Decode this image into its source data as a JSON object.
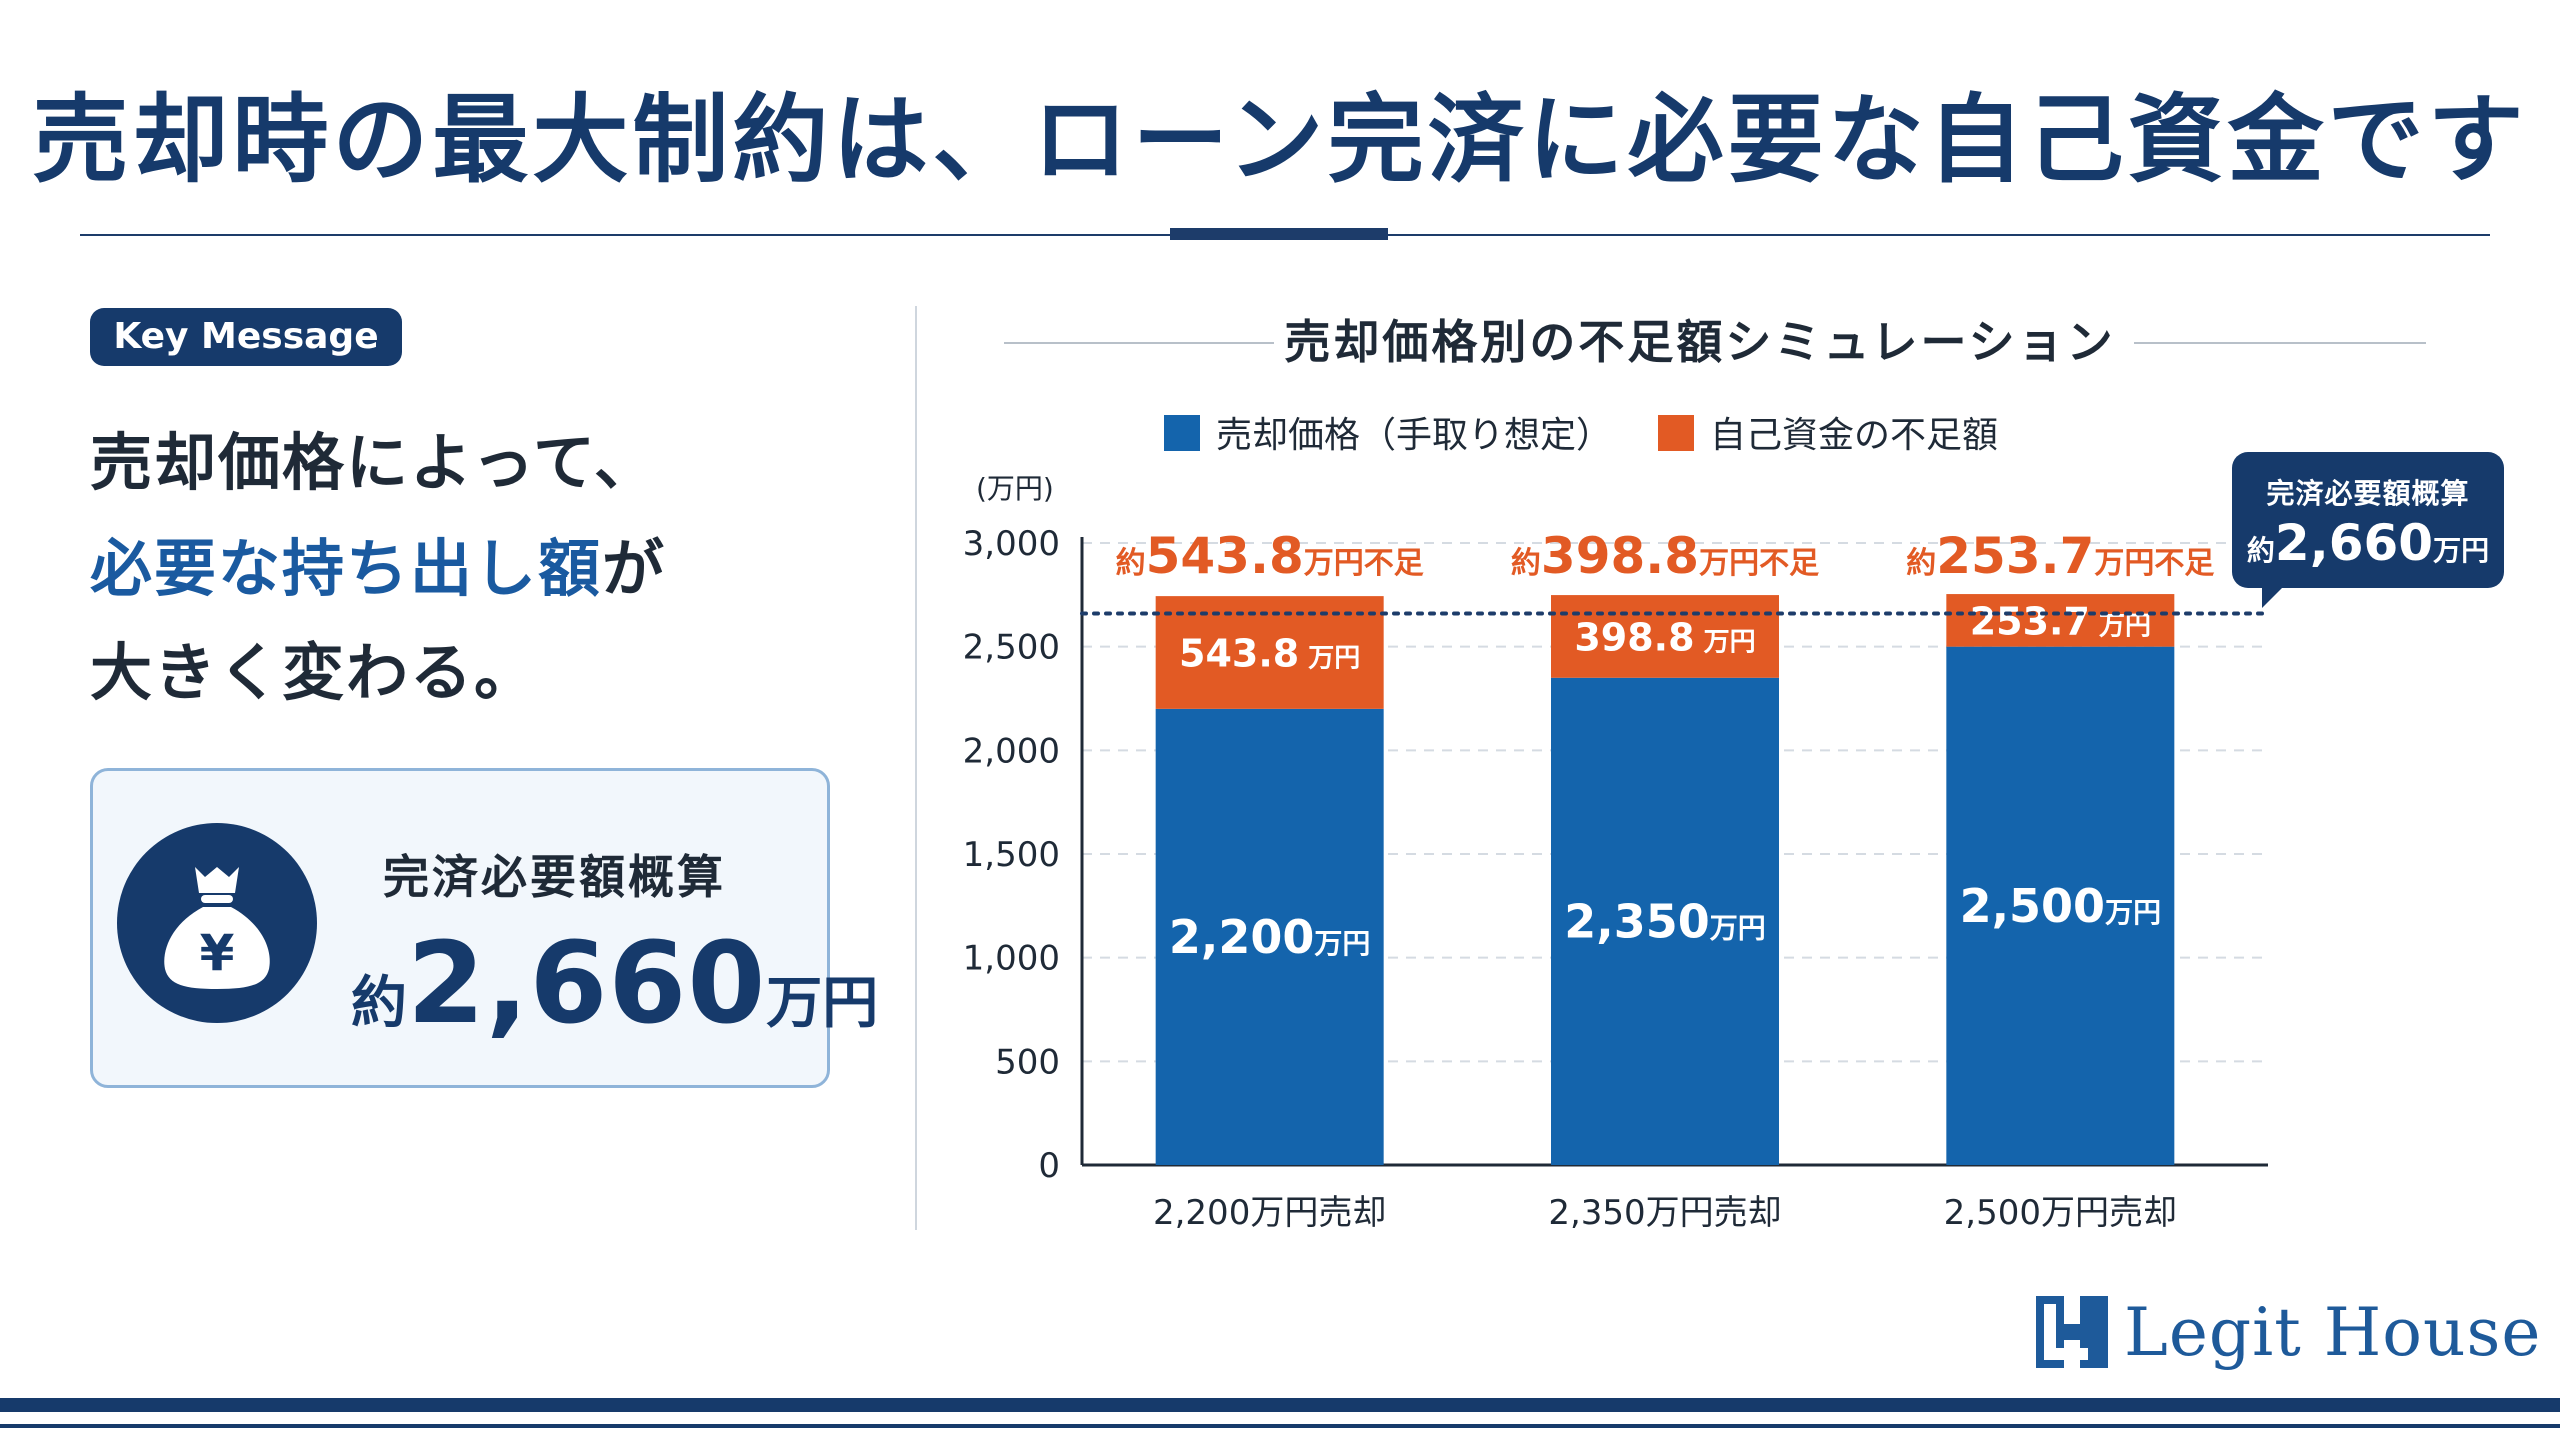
{
  "title": "売却時の最大制約は、ローン完済に必要な自己資金です",
  "key_message": {
    "badge": "Key Message",
    "line1": "売却価格によって、",
    "line2_blue": "必要な持ち出し額",
    "line2_tail": "が",
    "line3": "大きく変わる。"
  },
  "summary_box": {
    "icon": "money-bag-yen-icon",
    "label": "完済必要額概算",
    "prefix": "約",
    "value": "2,660",
    "unit": "万円"
  },
  "callout": {
    "label": "完済必要額概算",
    "prefix": "約",
    "value": "2,660",
    "unit": "万円"
  },
  "logo": {
    "text": "Legit House"
  },
  "colors": {
    "navy": "#163a6b",
    "blue": "#1464ac",
    "orange": "#e25a24",
    "grid": "#d5dbe2"
  },
  "chart_data": {
    "type": "bar",
    "stacked": true,
    "title": "売却価格別の不足額シミュレーション",
    "unit_label": "(万円)",
    "categories": [
      "2,200万円売却",
      "2,350万円売却",
      "2,500万円売却"
    ],
    "series": [
      {
        "name": "売却価格（手取り想定）",
        "values": [
          2200,
          2350,
          2500
        ],
        "labels": [
          "2,200",
          "2,350",
          "2,500"
        ],
        "color": "#1464ac"
      },
      {
        "name": "自己資金の不足額",
        "values": [
          543.8,
          398.8,
          253.7
        ],
        "labels": [
          "543.8",
          "398.8",
          "253.7"
        ],
        "color": "#e25a24"
      }
    ],
    "value_unit": "万円",
    "top_labels": {
      "prefix": "約",
      "values": [
        "543.8",
        "398.8",
        "253.7"
      ],
      "suffix": "万円不足"
    },
    "reference_line": {
      "value": 2660
    },
    "ylim": [
      0,
      3000
    ],
    "yticks": [
      0,
      500,
      1000,
      1500,
      2000,
      2500,
      3000
    ],
    "ytick_labels": [
      "0",
      "500",
      "1,000",
      "1,500",
      "2,000",
      "2,500",
      "3,000"
    ],
    "grid": true,
    "legend": "top"
  }
}
